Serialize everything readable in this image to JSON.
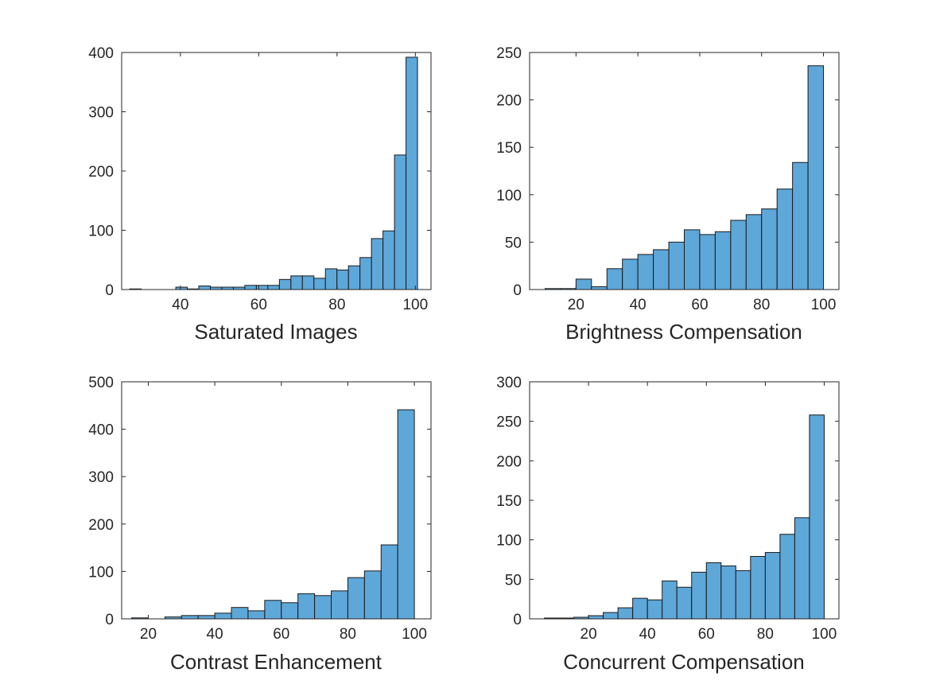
{
  "colors": {
    "bar_fill": "#5ea7d9",
    "bar_edge": "#1a1a1a",
    "axis": "#262626",
    "background": "#ffffff"
  },
  "chart_data": [
    {
      "type": "bar",
      "title": "",
      "xlabel": "Saturated Images",
      "ylabel": "",
      "xlim": [
        25,
        104
      ],
      "ylim": [
        0,
        400
      ],
      "xticks": [
        40,
        60,
        80,
        100
      ],
      "yticks": [
        0,
        100,
        200,
        300,
        400
      ],
      "bin_width": 2.94,
      "bin_edges_start": 27.06,
      "values": [
        1,
        0,
        0,
        0,
        4,
        1,
        6,
        4,
        4,
        4,
        7,
        7,
        7,
        17,
        23,
        23,
        19,
        35,
        33,
        40,
        54,
        86,
        99,
        227,
        392
      ]
    },
    {
      "type": "bar",
      "title": "",
      "xlabel": "Brightness Compensation",
      "ylabel": "",
      "xlim": [
        5,
        105
      ],
      "ylim": [
        0,
        250
      ],
      "xticks": [
        20,
        40,
        60,
        80,
        100
      ],
      "yticks": [
        0,
        50,
        100,
        150,
        200,
        250
      ],
      "bin_width": 5,
      "bin_edges_start": 10,
      "values": [
        1,
        1,
        11,
        3,
        22,
        32,
        37,
        42,
        50,
        63,
        58,
        61,
        73,
        79,
        85,
        106,
        134,
        236
      ]
    },
    {
      "type": "bar",
      "title": "",
      "xlabel": "Contrast Enhancement",
      "ylabel": "",
      "xlim": [
        12,
        105
      ],
      "ylim": [
        0,
        500
      ],
      "xticks": [
        20,
        40,
        60,
        80,
        100
      ],
      "yticks": [
        0,
        100,
        200,
        300,
        400,
        500
      ],
      "bin_width": 5,
      "bin_edges_start": 15,
      "values": [
        2,
        0,
        4,
        7,
        7,
        12,
        24,
        17,
        39,
        34,
        53,
        49,
        59,
        87,
        101,
        156,
        441
      ]
    },
    {
      "type": "bar",
      "title": "",
      "xlabel": "Concurrent Compensation",
      "ylabel": "",
      "xlim": [
        0,
        105
      ],
      "ylim": [
        0,
        300
      ],
      "xticks": [
        20,
        40,
        60,
        80,
        100
      ],
      "yticks": [
        0,
        50,
        100,
        150,
        200,
        250,
        300
      ],
      "bin_width": 5,
      "bin_edges_start": 5,
      "values": [
        1,
        1,
        2,
        4,
        8,
        14,
        26,
        24,
        48,
        40,
        59,
        71,
        67,
        61,
        79,
        84,
        107,
        128,
        258
      ]
    }
  ]
}
